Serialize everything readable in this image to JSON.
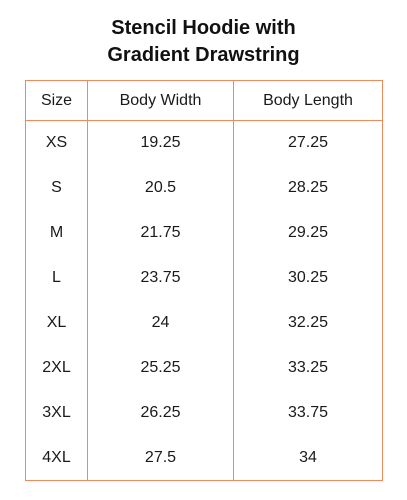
{
  "title": {
    "line1": "Stencil Hoodie with",
    "line2": "Gradient Drawstring"
  },
  "colors": {
    "border": "#ef8a5b",
    "text": "#1a1a1a"
  },
  "table": {
    "headers": [
      "Size",
      "Body Width",
      "Body Length"
    ],
    "rows": [
      [
        "XS",
        "19.25",
        "27.25"
      ],
      [
        "S",
        "20.5",
        "28.25"
      ],
      [
        "M",
        "21.75",
        "29.25"
      ],
      [
        "L",
        "23.75",
        "30.25"
      ],
      [
        "XL",
        "24",
        "32.25"
      ],
      [
        "2XL",
        "25.25",
        "33.25"
      ],
      [
        "3XL",
        "26.25",
        "33.75"
      ],
      [
        "4XL",
        "27.5",
        "34"
      ]
    ]
  }
}
